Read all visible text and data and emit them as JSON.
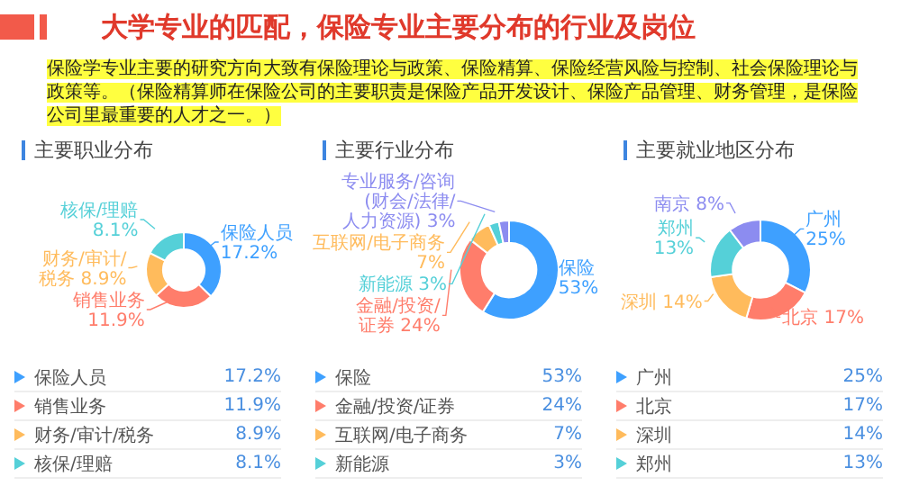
{
  "chart_data": [
    {
      "type": "other",
      "title": "大学专业的匹配，保险专业主要分布的行业及岗位",
      "annotations": [
        "保险学专业主要的研究方向大致有保险理论与政策、保险精算、保险经营风险与控制、社会保险理论与政策等。（保险精算师在保险公司的主要职责是保险产品开发设计、保险产品管理、财务管理，是保险公司里最重要的人才之一。）"
      ]
    },
    {
      "type": "donut",
      "title": "主要职业分布",
      "categories": [
        "保险人员",
        "销售业务",
        "财务/审计/税务",
        "核保/理赔"
      ],
      "values": [
        17.2,
        11.9,
        8.9,
        8.1
      ],
      "value_labels": [
        "17.2%",
        "11.9%",
        "8.9%",
        "8.1%"
      ],
      "colors": [
        "#3ea0ff",
        "#ff7d6b",
        "#ffbb5c",
        "#55d0d8"
      ],
      "legend": "bottom"
    },
    {
      "type": "donut",
      "title": "主要行业分布",
      "categories": [
        "保险",
        "金融/投资/证券",
        "互联网/电子商务",
        "新能源",
        "专业服务/咨询(财会/法律/人力资源)"
      ],
      "values": [
        53,
        24,
        7,
        3,
        3
      ],
      "value_labels": [
        "53%",
        "24%",
        "7%",
        "3%",
        "3%"
      ],
      "colors": [
        "#3ea0ff",
        "#ff7d6b",
        "#ffbb5c",
        "#55d0d8",
        "#8c8cf0"
      ],
      "legend": "bottom"
    },
    {
      "type": "donut",
      "title": "主要就业地区分布",
      "categories": [
        "广州",
        "北京",
        "深圳",
        "郑州",
        "南京"
      ],
      "values": [
        25,
        17,
        14,
        13,
        8
      ],
      "value_labels": [
        "25%",
        "17%",
        "14%",
        "13%",
        "8%"
      ],
      "colors": [
        "#3ea0ff",
        "#ff7d6b",
        "#ffbb5c",
        "#55d0d8",
        "#8c8cf0"
      ],
      "legend": "bottom"
    }
  ]
}
